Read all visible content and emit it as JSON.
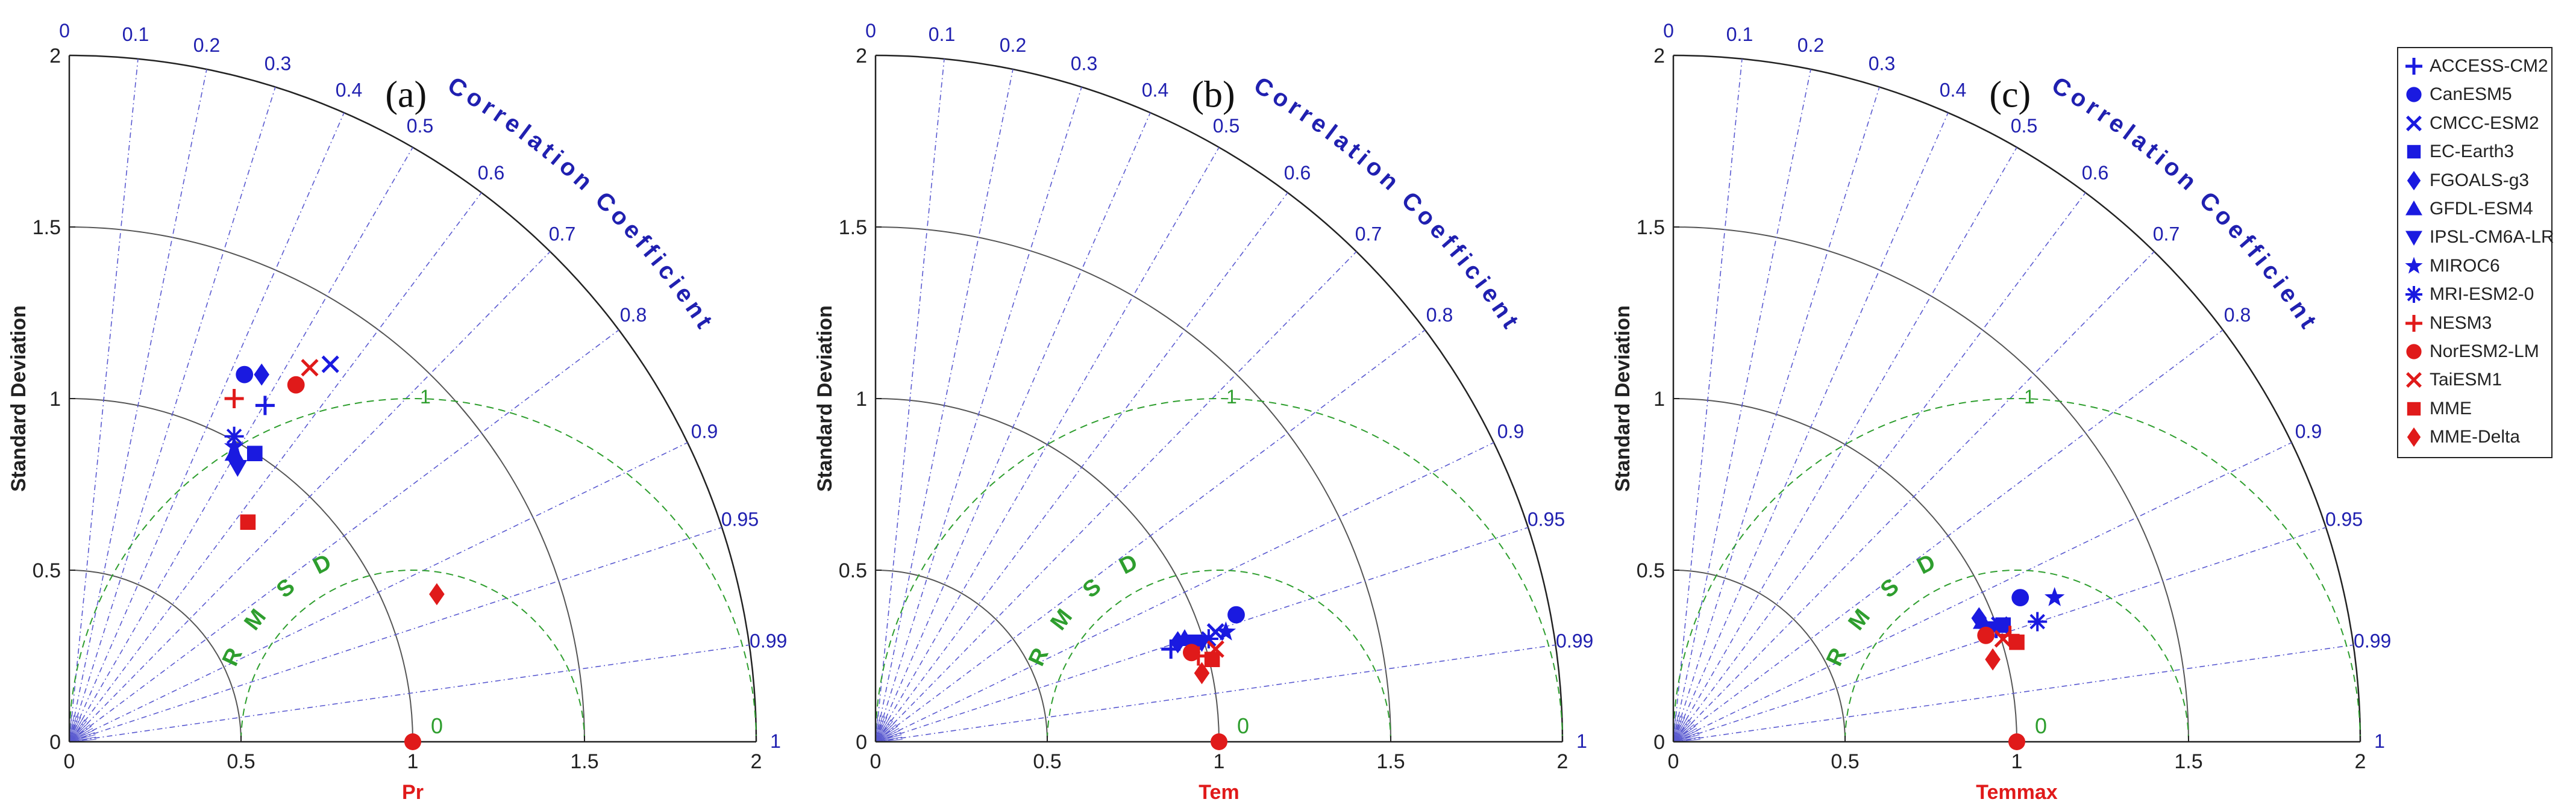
{
  "colors": {
    "model": "#1a1ae0",
    "ensemble": "#e01a1a",
    "axes": "#555555",
    "corr_lines": "#5a5ad0",
    "rms": "#2e9e2e",
    "corr_text": "#2020b0",
    "text": "#222222"
  },
  "rms_arc_label": "R M S D",
  "chart_data": [
    {
      "type": "taylor",
      "panel_label": "(a)",
      "xlabel": "Pr",
      "ylabel": "Standard Deviation",
      "corr_title": "Correlation Coefficient",
      "std_range": [
        0,
        2
      ],
      "std_ticks": [
        "0",
        "0.5",
        "1",
        "1.5",
        "2"
      ],
      "std_tick_values": [
        0,
        0.5,
        1,
        1.5,
        2
      ],
      "reference_std": 1,
      "reference_label": "0",
      "rms_contours": [
        0.5,
        1
      ],
      "rms_contour_labels": [
        "",
        "1"
      ],
      "corr_labels": [
        "0",
        "0.1",
        "0.2",
        "0.3",
        "0.4",
        "0.5",
        "0.6",
        "0.7",
        "0.8",
        "0.9",
        "0.95",
        "0.99",
        "1"
      ],
      "corr_values": [
        0,
        0.1,
        0.2,
        0.3,
        0.4,
        0.5,
        0.6,
        0.7,
        0.8,
        0.9,
        0.95,
        0.99,
        1
      ],
      "points": [
        {
          "model": "ACCESS-CM2",
          "x": 0.57,
          "y": 0.98
        },
        {
          "model": "CanESM5",
          "x": 0.51,
          "y": 1.07
        },
        {
          "model": "CMCC-ESM2",
          "x": 0.76,
          "y": 1.1
        },
        {
          "model": "EC-Earth3",
          "x": 0.54,
          "y": 0.84
        },
        {
          "model": "FGOALS-g3",
          "x": 0.56,
          "y": 1.07
        },
        {
          "model": "GFDL-ESM4",
          "x": 0.48,
          "y": 0.84
        },
        {
          "model": "IPSL-CM6A-LR",
          "x": 0.49,
          "y": 0.8
        },
        {
          "model": "MIROC6",
          "x": 0.48,
          "y": 0.86
        },
        {
          "model": "MRI-ESM2-0",
          "x": 0.48,
          "y": 0.89
        },
        {
          "model": "NESM3",
          "x": 0.48,
          "y": 1.0
        },
        {
          "model": "NorESM2-LM",
          "x": 0.66,
          "y": 1.04
        },
        {
          "model": "TaiESM1",
          "x": 0.7,
          "y": 1.09
        },
        {
          "model": "MME",
          "x": 0.52,
          "y": 0.64
        },
        {
          "model": "MME-Delta",
          "x": 1.07,
          "y": 0.43
        }
      ]
    },
    {
      "type": "taylor",
      "panel_label": "(b)",
      "xlabel": "Tem",
      "ylabel": "Standard Deviation",
      "corr_title": "Correlation Coefficient",
      "std_range": [
        0,
        2
      ],
      "std_ticks": [
        "0",
        "0.5",
        "1",
        "1.5",
        "2"
      ],
      "std_tick_values": [
        0,
        0.5,
        1,
        1.5,
        2
      ],
      "reference_std": 1,
      "reference_label": "0",
      "rms_contours": [
        0.5,
        1
      ],
      "rms_contour_labels": [
        "",
        "1"
      ],
      "corr_labels": [
        "0",
        "0.1",
        "0.2",
        "0.3",
        "0.4",
        "0.5",
        "0.6",
        "0.7",
        "0.8",
        "0.9",
        "0.95",
        "0.99",
        "1"
      ],
      "corr_values": [
        0,
        0.1,
        0.2,
        0.3,
        0.4,
        0.5,
        0.6,
        0.7,
        0.8,
        0.9,
        0.95,
        0.99,
        1
      ],
      "points": [
        {
          "model": "ACCESS-CM2",
          "x": 0.86,
          "y": 0.27
        },
        {
          "model": "CanESM5",
          "x": 1.05,
          "y": 0.37
        },
        {
          "model": "CMCC-ESM2",
          "x": 0.99,
          "y": 0.32
        },
        {
          "model": "EC-Earth3",
          "x": 0.93,
          "y": 0.29
        },
        {
          "model": "FGOALS-g3",
          "x": 0.88,
          "y": 0.29
        },
        {
          "model": "GFDL-ESM4",
          "x": 0.9,
          "y": 0.3
        },
        {
          "model": "IPSL-CM6A-LR",
          "x": 0.95,
          "y": 0.29
        },
        {
          "model": "MIROC6",
          "x": 1.02,
          "y": 0.32
        },
        {
          "model": "MRI-ESM2-0",
          "x": 0.97,
          "y": 0.3
        },
        {
          "model": "NESM3",
          "x": 0.94,
          "y": 0.25
        },
        {
          "model": "NorESM2-LM",
          "x": 0.92,
          "y": 0.26
        },
        {
          "model": "TaiESM1",
          "x": 0.99,
          "y": 0.27
        },
        {
          "model": "MME",
          "x": 0.98,
          "y": 0.24
        },
        {
          "model": "MME-Delta",
          "x": 0.95,
          "y": 0.2
        }
      ]
    },
    {
      "type": "taylor",
      "panel_label": "(c)",
      "xlabel": "Temmax",
      "ylabel": "Standard Deviation",
      "corr_title": "Correlation Coefficient",
      "std_range": [
        0,
        2
      ],
      "std_ticks": [
        "0",
        "0.5",
        "1",
        "1.5",
        "2"
      ],
      "std_tick_values": [
        0,
        0.5,
        1,
        1.5,
        2
      ],
      "reference_std": 1,
      "reference_label": "0",
      "rms_contours": [
        0.5,
        1
      ],
      "rms_contour_labels": [
        "",
        "1"
      ],
      "corr_labels": [
        "0",
        "0.1",
        "0.2",
        "0.3",
        "0.4",
        "0.5",
        "0.6",
        "0.7",
        "0.8",
        "0.9",
        "0.95",
        "0.99",
        "1"
      ],
      "corr_values": [
        0,
        0.1,
        0.2,
        0.3,
        0.4,
        0.5,
        0.6,
        0.7,
        0.8,
        0.9,
        0.95,
        0.99,
        1
      ],
      "points": [
        {
          "model": "ACCESS-CM2",
          "x": 0.94,
          "y": 0.33
        },
        {
          "model": "CanESM5",
          "x": 1.01,
          "y": 0.42
        },
        {
          "model": "CMCC-ESM2",
          "x": 0.95,
          "y": 0.34
        },
        {
          "model": "EC-Earth3",
          "x": 0.96,
          "y": 0.34
        },
        {
          "model": "FGOALS-g3",
          "x": 0.89,
          "y": 0.36
        },
        {
          "model": "GFDL-ESM4",
          "x": 0.9,
          "y": 0.35
        },
        {
          "model": "IPSL-CM6A-LR",
          "x": 0.92,
          "y": 0.33
        },
        {
          "model": "MIROC6",
          "x": 1.11,
          "y": 0.42
        },
        {
          "model": "MRI-ESM2-0",
          "x": 1.06,
          "y": 0.35
        },
        {
          "model": "NESM3",
          "x": 0.98,
          "y": 0.31
        },
        {
          "model": "NorESM2-LM",
          "x": 0.91,
          "y": 0.31
        },
        {
          "model": "TaiESM1",
          "x": 0.96,
          "y": 0.3
        },
        {
          "model": "MME",
          "x": 1.0,
          "y": 0.29
        },
        {
          "model": "MME-Delta",
          "x": 0.93,
          "y": 0.24
        }
      ]
    }
  ],
  "legend": {
    "items": [
      {
        "label": "ACCESS-CM2",
        "marker": "plus",
        "color": "#1a1ae0"
      },
      {
        "label": "CanESM5",
        "marker": "circle",
        "color": "#1a1ae0"
      },
      {
        "label": "CMCC-ESM2",
        "marker": "cross",
        "color": "#1a1ae0"
      },
      {
        "label": "EC-Earth3",
        "marker": "square",
        "color": "#1a1ae0"
      },
      {
        "label": "FGOALS-g3",
        "marker": "diamond",
        "color": "#1a1ae0"
      },
      {
        "label": "GFDL-ESM4",
        "marker": "triangle-up",
        "color": "#1a1ae0"
      },
      {
        "label": "IPSL-CM6A-LR",
        "marker": "triangle-down",
        "color": "#1a1ae0"
      },
      {
        "label": "MIROC6",
        "marker": "star",
        "color": "#1a1ae0"
      },
      {
        "label": "MRI-ESM2-0",
        "marker": "asterisk",
        "color": "#1a1ae0"
      },
      {
        "label": "NESM3",
        "marker": "plus",
        "color": "#e01a1a"
      },
      {
        "label": "NorESM2-LM",
        "marker": "circle",
        "color": "#e01a1a"
      },
      {
        "label": "TaiESM1",
        "marker": "cross",
        "color": "#e01a1a"
      },
      {
        "label": "MME",
        "marker": "square",
        "color": "#e01a1a"
      },
      {
        "label": "MME-Delta",
        "marker": "diamond",
        "color": "#e01a1a"
      }
    ]
  }
}
